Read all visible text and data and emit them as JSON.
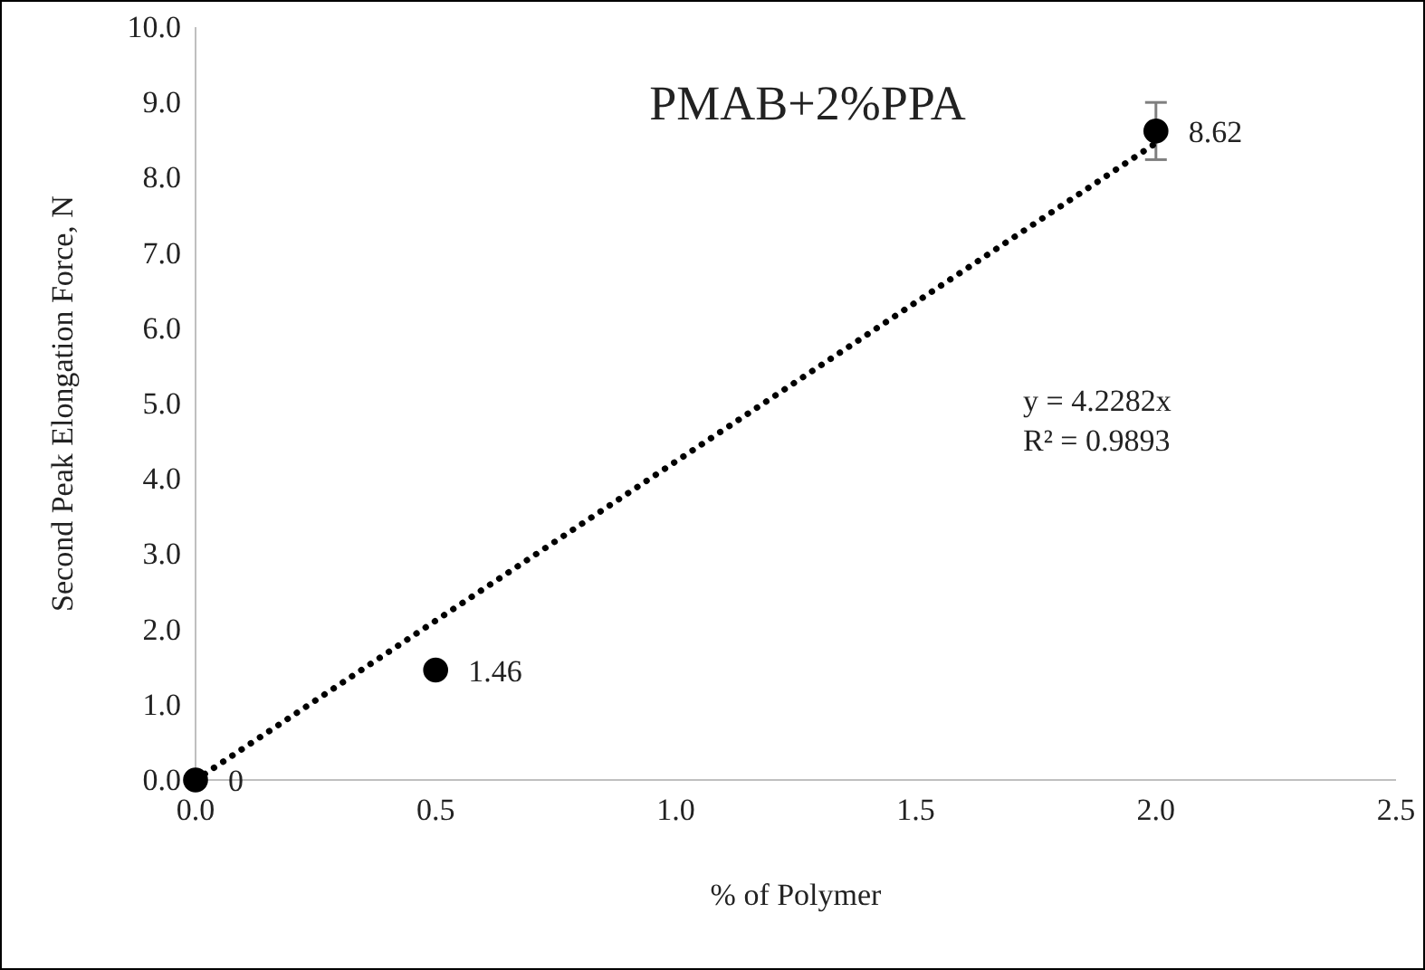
{
  "chart_data": {
    "type": "scatter",
    "title": "PMAB+2%PPA",
    "xlabel": "% of Polymer",
    "ylabel": "Second Peak Elongation Force, N",
    "xlim": [
      0,
      2.5
    ],
    "xticks": [
      {
        "value": 0,
        "label": "0.0"
      },
      {
        "value": 0.5,
        "label": "0.5"
      },
      {
        "value": 1,
        "label": "1.0"
      },
      {
        "value": 1.5,
        "label": "1.5"
      },
      {
        "value": 2,
        "label": "2.0"
      },
      {
        "value": 2.5,
        "label": "2.5"
      }
    ],
    "ylim": [
      0,
      10
    ],
    "yticks": [
      {
        "value": 0,
        "label": "0.0"
      },
      {
        "value": 1,
        "label": "1.0"
      },
      {
        "value": 2,
        "label": "2.0"
      },
      {
        "value": 3,
        "label": "3.0"
      },
      {
        "value": 4,
        "label": "4.0"
      },
      {
        "value": 5,
        "label": "5.0"
      },
      {
        "value": 6,
        "label": "6.0"
      },
      {
        "value": 7,
        "label": "7.0"
      },
      {
        "value": 8,
        "label": "8.0"
      },
      {
        "value": 9,
        "label": "9.0"
      },
      {
        "value": 10,
        "label": "10.0"
      }
    ],
    "grid": false,
    "marker": "circle",
    "series": [
      {
        "color": "#000000",
        "x": [
          0,
          0.5,
          2.0
        ],
        "values": [
          0,
          1.46,
          8.62
        ],
        "value_labels": [
          "0",
          "1.46",
          "8.62"
        ],
        "errors": [
          null,
          null,
          0.38
        ]
      },
      {
        "type": "line",
        "color": "#000000",
        "line_style": "dotted",
        "marker": "none",
        "x": [
          0,
          2.0
        ],
        "values": [
          0,
          8.46
        ]
      }
    ],
    "annotations": [
      "y = 4.2282x",
      "R² = 0.9893"
    ]
  }
}
